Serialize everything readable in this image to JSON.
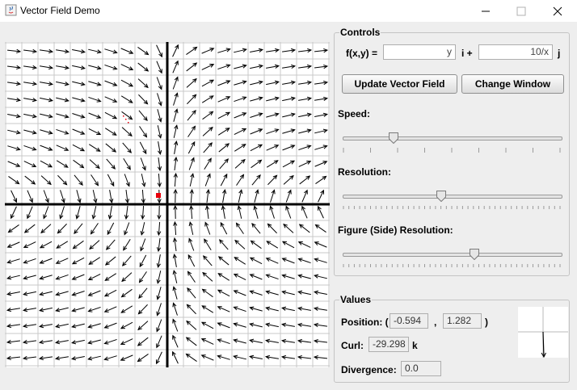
{
  "window": {
    "title": "Vector Field Demo"
  },
  "controls": {
    "group_title": "Controls",
    "fxy_label": "f(x,y) =",
    "i_value": "y",
    "i_label": "i +",
    "j_value": "10/x",
    "j_label": "j",
    "update_button": "Update Vector Field",
    "change_window_button": "Change Window",
    "speed_label": "Speed:",
    "resolution_label": "Resolution:",
    "figure_resolution_label": "Figure (Side) Resolution:",
    "speed_level": 0.22,
    "resolution_level": 0.45,
    "figure_resolution_level": 0.61
  },
  "values": {
    "group_title": "Values",
    "position_label": "Position: (",
    "position_x": "-0.594",
    "comma": ",",
    "position_y": "1.282",
    "close_paren": ")",
    "curl_label": "Curl:",
    "curl_value": "-29.298",
    "curl_unit": "k",
    "divergence_label": "Divergence:",
    "divergence_value": "0.0"
  },
  "field": {
    "function_i": "y",
    "function_j": "10/x",
    "marker_color": "#e8000b",
    "trace_color": "#e8000b"
  }
}
